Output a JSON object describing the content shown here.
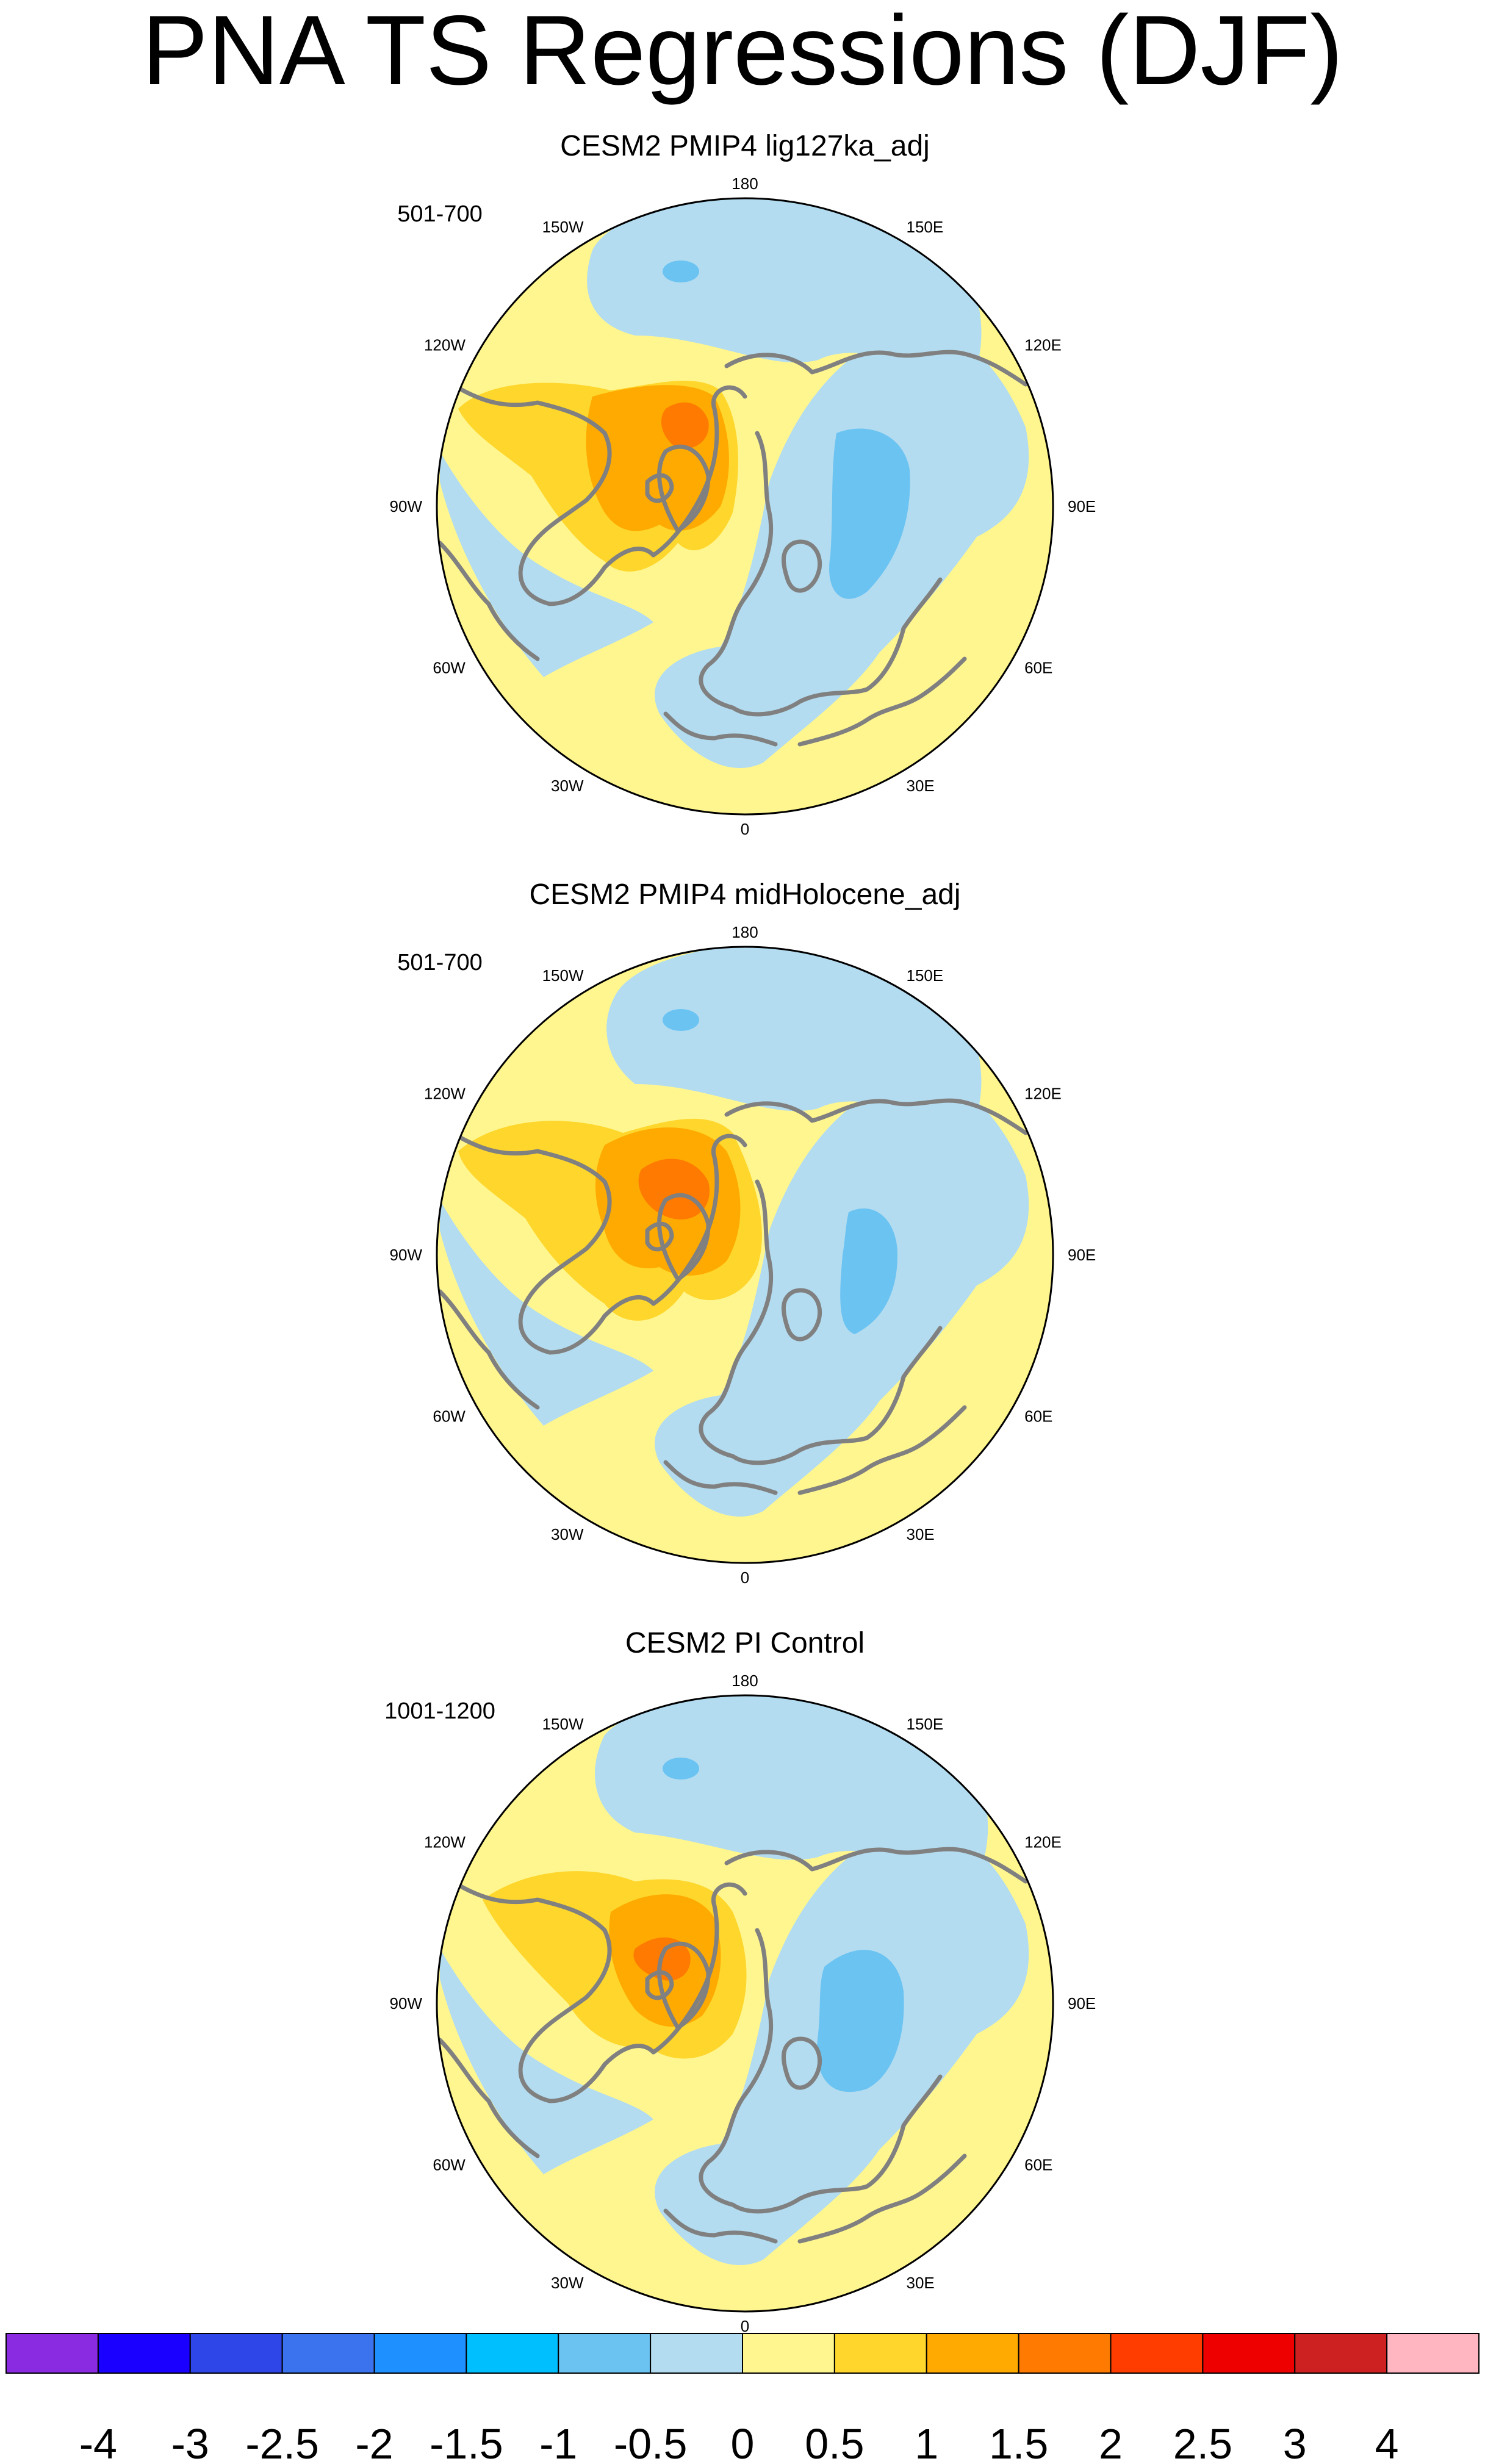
{
  "title": "PNA TS Regressions (DJF)",
  "panels": [
    {
      "title": "CESM2 PMIP4 lig127ka_adj",
      "years": "501-700"
    },
    {
      "title": "CESM2 PMIP4 midHolocene_adj",
      "years": "501-700"
    },
    {
      "title": "CESM2 PI Control",
      "years": "1001-1200"
    }
  ],
  "longitude_labels": [
    "180",
    "150E",
    "120E",
    "90E",
    "60E",
    "30E",
    "0",
    "30W",
    "60W",
    "90W",
    "120W",
    "150W"
  ],
  "colorbar": {
    "labels": [
      "-4",
      "-3",
      "-2.5",
      "-2",
      "-1.5",
      "-1",
      "-0.5",
      "0",
      "0.5",
      "1",
      "1.5",
      "2",
      "2.5",
      "3",
      "4"
    ],
    "colors": [
      "#8a2be2",
      "#1a00ff",
      "#2e46e8",
      "#3b73ee",
      "#1e90ff",
      "#00bfff",
      "#6bc3f2",
      "#b3dcf0",
      "#fff68f",
      "#ffd62b",
      "#ffaa00",
      "#ff7a00",
      "#ff3d00",
      "#ee0000",
      "#cd2020",
      "#ffb6c1"
    ]
  },
  "map_style": {
    "ocean_fill": "#fff68f",
    "coastline_color": "#808080",
    "circle_border": "#000000"
  },
  "chart_data": {
    "type": "map",
    "projection": "north polar stereographic",
    "variable": "TS regression on PNA index",
    "season": "DJF",
    "levels": [
      -4,
      -3,
      -2.5,
      -2,
      -1.5,
      -1,
      -0.5,
      0,
      0.5,
      1,
      1.5,
      2,
      2.5,
      3,
      4
    ],
    "panels": [
      {
        "title": "CESM2 PMIP4 lig127ka_adj",
        "period": "501-700"
      },
      {
        "title": "CESM2 PMIP4 midHolocene_adj",
        "period": "501-700"
      },
      {
        "title": "CESM2 PI Control",
        "period": "1001-1200"
      }
    ]
  }
}
